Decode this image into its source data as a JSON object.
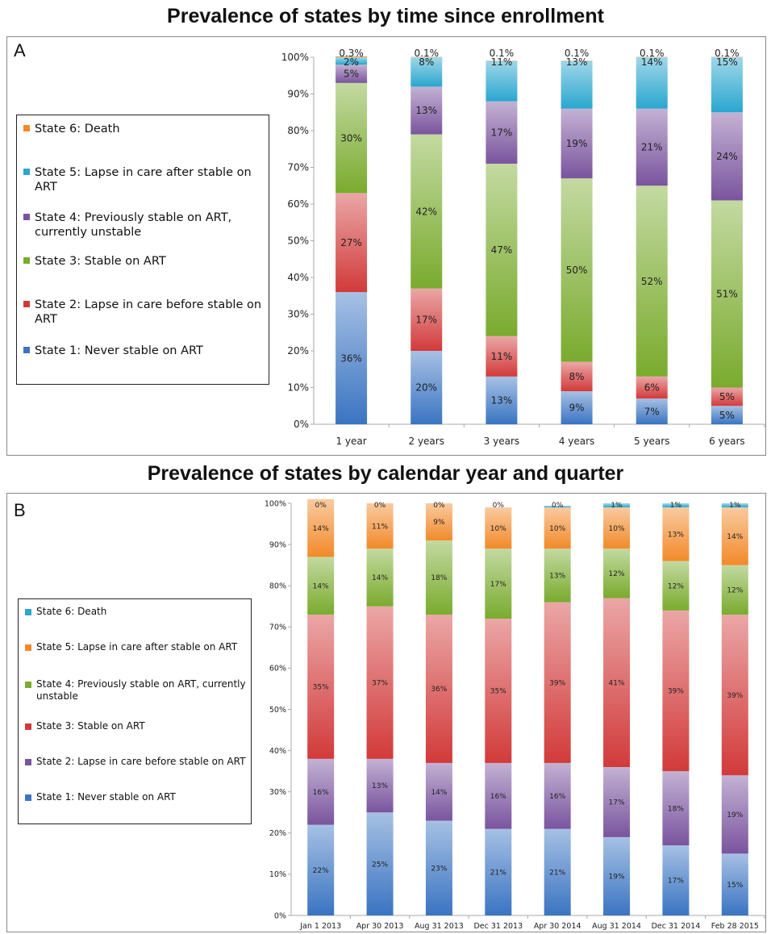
{
  "chart_data": [
    {
      "type": "bar",
      "stacked": true,
      "panel_label": "A",
      "title": "Prevalence of states by time since enrollment",
      "categories": [
        "1 year",
        "2 years",
        "3 years",
        "4 years",
        "5 years",
        "6 years"
      ],
      "ylim": [
        0,
        100
      ],
      "yticks": [
        "0%",
        "10%",
        "20%",
        "30%",
        "40%",
        "50%",
        "60%",
        "70%",
        "80%",
        "90%",
        "100%"
      ],
      "legend_position": "left",
      "series": [
        {
          "name": "State 1: Never stable on ART",
          "color": "#3a74c2",
          "values": [
            36,
            20,
            13,
            9,
            7,
            5
          ],
          "labels": [
            "36%",
            "20%",
            "13%",
            "9%",
            "7%",
            "5%"
          ]
        },
        {
          "name": "State 2: Lapse in care before stable on ART",
          "color": "#d23a3a",
          "values": [
            27,
            17,
            11,
            8,
            6,
            5
          ],
          "labels": [
            "27%",
            "17%",
            "11%",
            "8%",
            "6%",
            "5%"
          ]
        },
        {
          "name": "State 3: Stable on ART",
          "color": "#7aab2e",
          "values": [
            30,
            42,
            47,
            50,
            52,
            51
          ],
          "labels": [
            "30%",
            "42%",
            "47%",
            "50%",
            "52%",
            "51%"
          ]
        },
        {
          "name": "State 4: Previously stable on ART, currently unstable",
          "color": "#7a549e",
          "values": [
            5,
            13,
            17,
            19,
            21,
            24
          ],
          "labels": [
            "5%",
            "13%",
            "17%",
            "19%",
            "21%",
            "24%"
          ]
        },
        {
          "name": "State 5: Lapse in care after stable on ART",
          "color": "#2aa6cf",
          "values": [
            2,
            8,
            11,
            13,
            14,
            15
          ],
          "labels": [
            "2%",
            "8%",
            "11%",
            "13%",
            "14%",
            "15%"
          ]
        },
        {
          "name": "State 6: Death",
          "color": "#f28a2a",
          "values": [
            0.3,
            0.1,
            0.1,
            0.1,
            0.1,
            0.1
          ],
          "labels": [
            "0.3%",
            "0.1%",
            "0.1%",
            "0.1%",
            "0.1%",
            "0.1%"
          ]
        }
      ]
    },
    {
      "type": "bar",
      "stacked": true,
      "panel_label": "B",
      "title": "Prevalence of states by calendar year and quarter",
      "categories": [
        "Jan 1 2013",
        "Apr 30 2013",
        "Aug 31 2013",
        "Dec 31 2013",
        "Apr 30 2014",
        "Aug 31 2014",
        "Dec 31 2014",
        "Feb 28 2015"
      ],
      "ylim": [
        0,
        100
      ],
      "yticks": [
        "0%",
        "10%",
        "20%",
        "30%",
        "40%",
        "50%",
        "60%",
        "70%",
        "80%",
        "90%",
        "100%"
      ],
      "legend_position": "left",
      "series": [
        {
          "name": "State 1: Never stable on ART",
          "color": "#3a74c2",
          "values": [
            22,
            25,
            23,
            21,
            21,
            19,
            17,
            15
          ],
          "labels": [
            "22%",
            "25%",
            "23%",
            "21%",
            "21%",
            "19%",
            "17%",
            "15%"
          ]
        },
        {
          "name": "State 2: Lapse in care before stable on ART",
          "color": "#7a549e",
          "values": [
            16,
            13,
            14,
            16,
            16,
            17,
            18,
            19
          ],
          "labels": [
            "16%",
            "13%",
            "14%",
            "16%",
            "16%",
            "17%",
            "18%",
            "19%"
          ]
        },
        {
          "name": "State 3: Stable on ART",
          "color": "#d23a3a",
          "values": [
            35,
            37,
            36,
            35,
            39,
            41,
            39,
            39
          ],
          "labels": [
            "35%",
            "37%",
            "36%",
            "35%",
            "39%",
            "41%",
            "39%",
            "39%"
          ]
        },
        {
          "name": "State 4: Previously stable on ART, currently unstable",
          "color": "#7aab2e",
          "values": [
            14,
            14,
            18,
            17,
            13,
            12,
            12,
            12
          ],
          "labels": [
            "14%",
            "14%",
            "18%",
            "17%",
            "13%",
            "12%",
            "12%",
            "12%"
          ]
        },
        {
          "name": "State 5: Lapse in care after stable on ART",
          "color": "#f28a2a",
          "values": [
            14,
            11,
            9,
            10,
            10,
            10,
            13,
            14
          ],
          "labels": [
            "14%",
            "11%",
            "9%",
            "10%",
            "10%",
            "10%",
            "13%",
            "14%"
          ]
        },
        {
          "name": "State 6: Death",
          "color": "#2aa6cf",
          "values": [
            0,
            0,
            0,
            0,
            0.4,
            1,
            1,
            1
          ],
          "labels": [
            "0%",
            "0%",
            "0%",
            "0%",
            "0%",
            "1%",
            "1%",
            "1%"
          ]
        }
      ]
    }
  ]
}
